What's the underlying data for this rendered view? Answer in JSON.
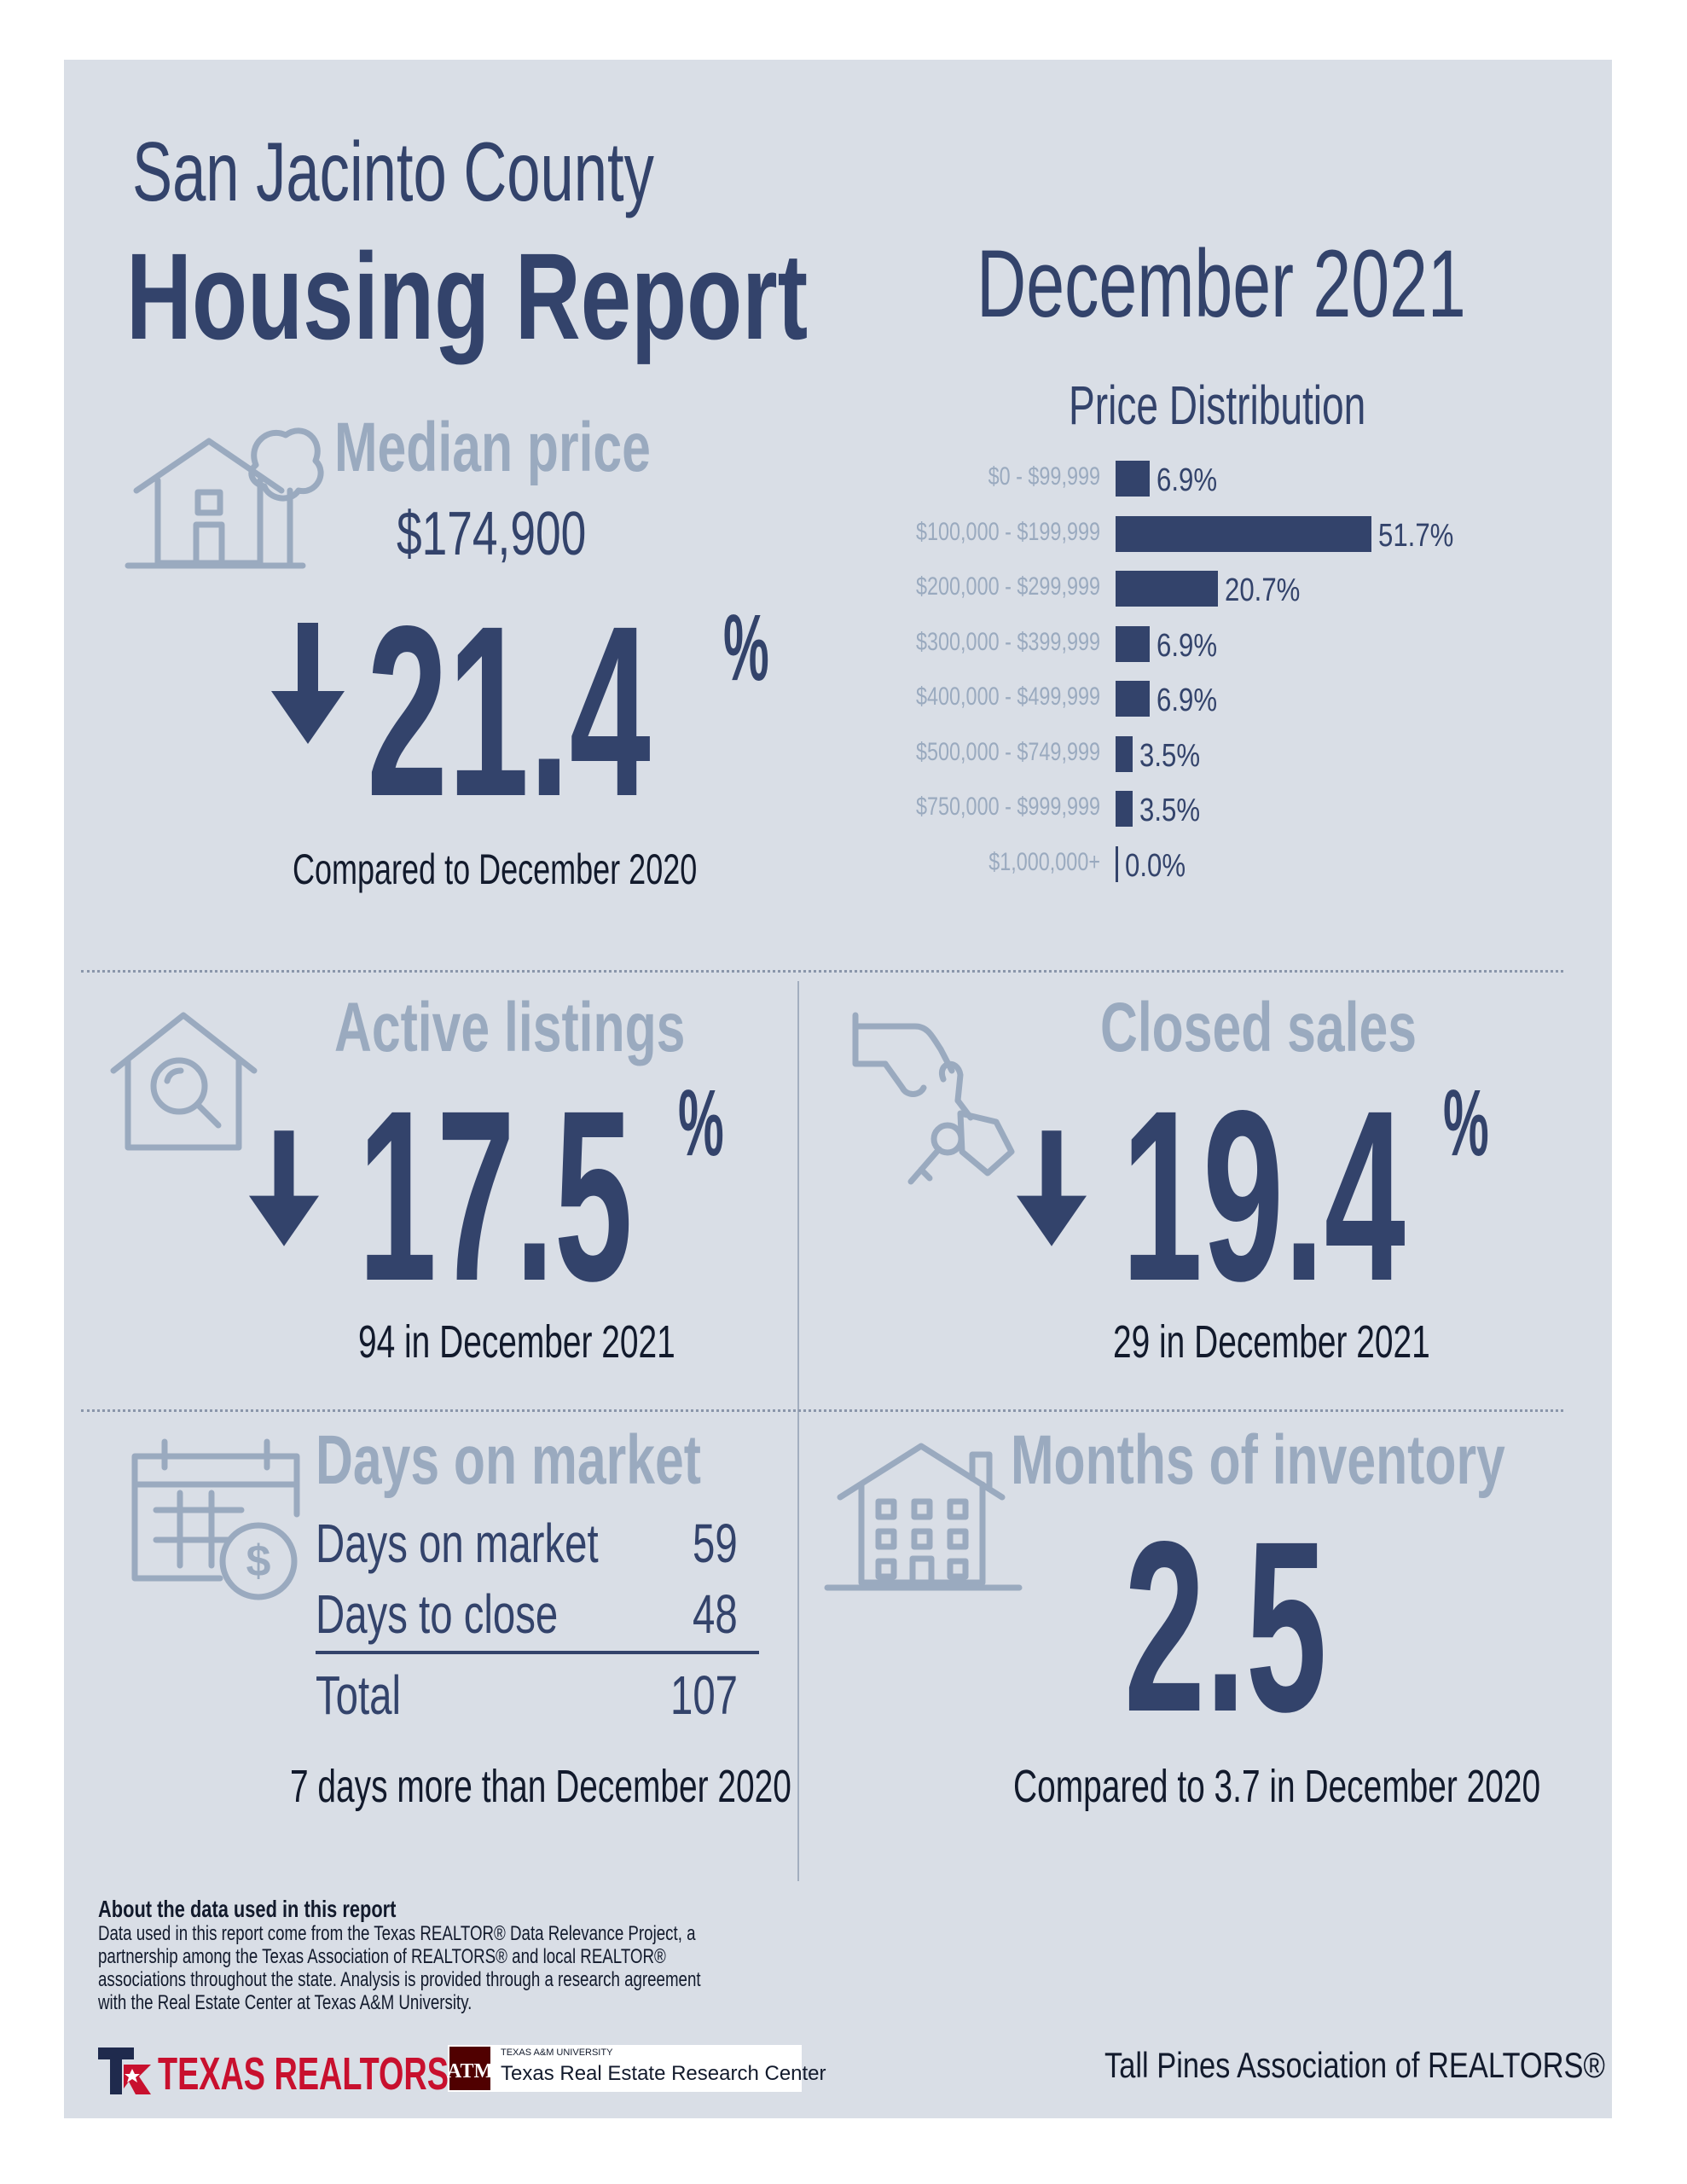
{
  "header": {
    "county": "San Jacinto County",
    "title": "Housing Report",
    "period": "December 2021"
  },
  "median_price": {
    "label": "Median price",
    "value": "$174,900",
    "change": "21.4",
    "direction": "down",
    "unit": "%",
    "comparison": "Compared to December 2020"
  },
  "price_distribution": {
    "title": "Price Distribution",
    "chart_data": {
      "type": "bar",
      "orientation": "horizontal",
      "title": "Price Distribution",
      "categories": [
        "$0 - $99,999",
        "$100,000 - $199,999",
        "$200,000 - $299,999",
        "$300,000 - $399,999",
        "$400,000 - $499,999",
        "$500,000 - $749,999",
        "$750,000 - $999,999",
        "$1,000,000+"
      ],
      "values": [
        6.9,
        51.7,
        20.7,
        6.9,
        6.9,
        3.5,
        3.5,
        0.0
      ],
      "value_labels": [
        "6.9%",
        "51.7%",
        "20.7%",
        "6.9%",
        "6.9%",
        "3.5%",
        "3.5%",
        "0.0%"
      ],
      "color": "#33436b"
    }
  },
  "active_listings": {
    "label": "Active listings",
    "change": "17.5",
    "direction": "down",
    "unit": "%",
    "note": "94 in December 2021"
  },
  "closed_sales": {
    "label": "Closed sales",
    "change": "19.4",
    "direction": "down",
    "unit": "%",
    "note": "29 in December 2021"
  },
  "days_on_market": {
    "label": "Days on market",
    "rows": [
      {
        "name": "Days on market",
        "value": "59"
      },
      {
        "name": "Days to close",
        "value": "48"
      }
    ],
    "total_label": "Total",
    "total_value": "107",
    "note": "7 days more than December 2020"
  },
  "months_inventory": {
    "label": "Months of inventory",
    "value": "2.5",
    "note": "Compared to 3.7 in December 2020"
  },
  "footer": {
    "about_title": "About the data used in this report",
    "about_lines": [
      "Data used in this report come from the Texas REALTOR® Data Relevance Project, a",
      "partnership among the Texas Association of REALTORS® and local REALTOR®",
      "associations throughout the state. Analysis is provided through a research agreement",
      "with the Real Estate Center at Texas A&M University."
    ],
    "logo_texas_realtors": "TEXAS REALTORS",
    "tamu_small": "TEXAS A&M UNIVERSITY",
    "tamu_center": "Texas Real Estate Research Center",
    "association": "Tall Pines Association of REALTORS®"
  },
  "colors": {
    "navy": "#33436b",
    "light_blue_gray": "#9aaabf",
    "panel_bg": "#d9dee6",
    "brand_red": "#c8102e"
  },
  "icons": [
    "house-tree-icon",
    "house-search-icon",
    "hand-keys-icon",
    "calendar-dollar-icon",
    "apartment-building-icon",
    "down-arrow-icon"
  ]
}
